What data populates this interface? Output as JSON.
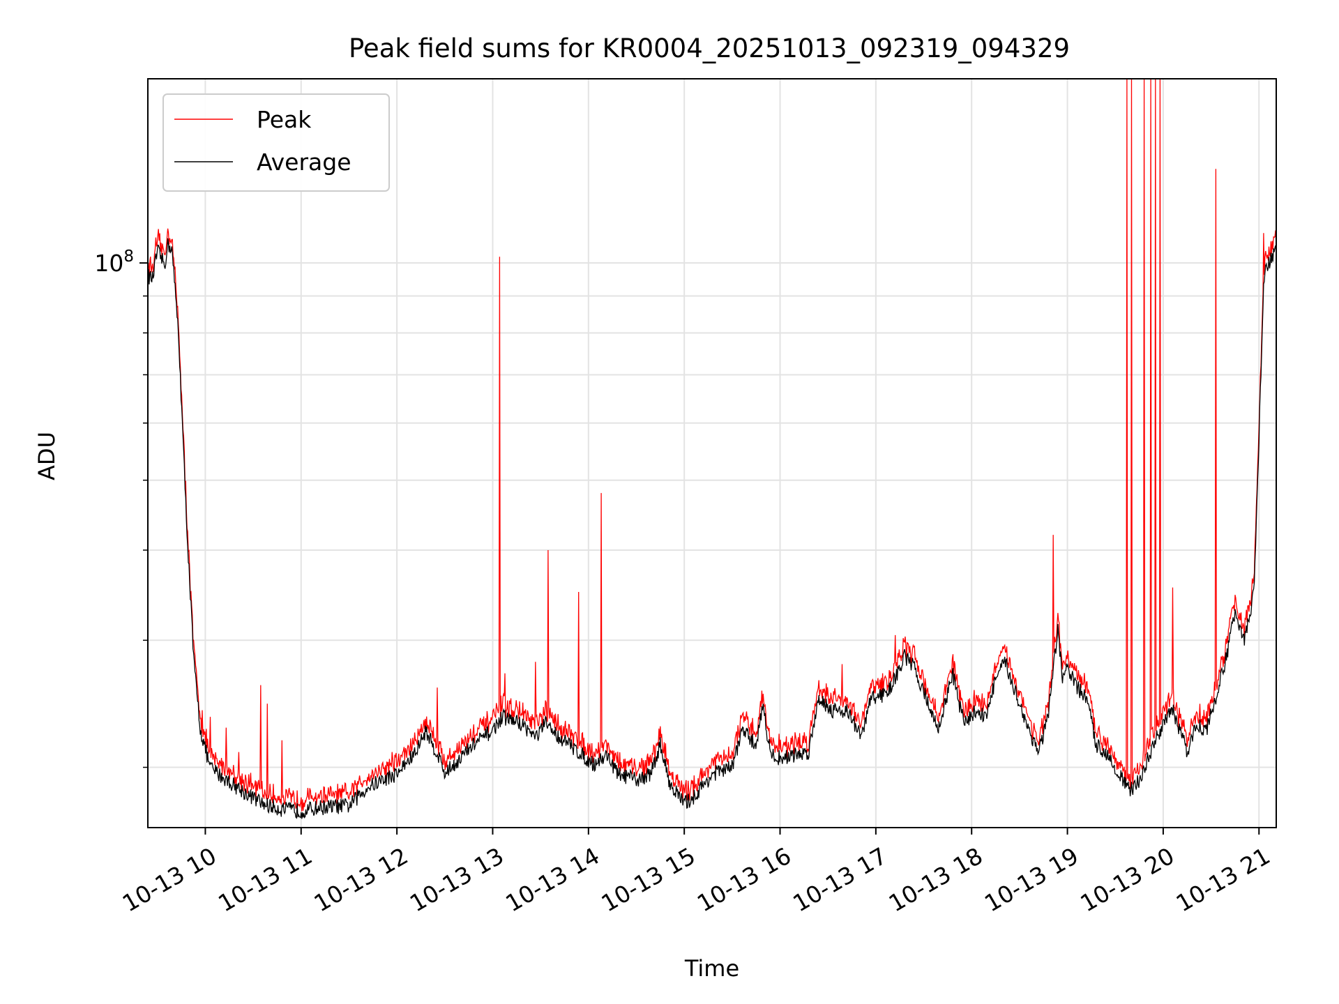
{
  "chart_data": {
    "type": "line",
    "title": "Peak field sums for KR0004_20251013_092319_094329",
    "xlabel": "Time",
    "ylabel": "ADU",
    "yscale": "log",
    "xlim": [
      9.4,
      21.18
    ],
    "ylim": [
      16500000,
      180000000
    ],
    "grid": true,
    "legend_position": "top-left",
    "y_major_tick_labels": [
      {
        "value": 100000000,
        "base": "10",
        "exp": "8"
      }
    ],
    "y_minor_ticks": [
      20000000,
      30000000,
      40000000,
      50000000,
      60000000,
      70000000,
      80000000,
      90000000,
      200000000
    ],
    "x_ticks": [
      {
        "value": 10,
        "label": "10-13 10"
      },
      {
        "value": 11,
        "label": "10-13 11"
      },
      {
        "value": 12,
        "label": "10-13 12"
      },
      {
        "value": 13,
        "label": "10-13 13"
      },
      {
        "value": 14,
        "label": "10-13 14"
      },
      {
        "value": 15,
        "label": "10-13 15"
      },
      {
        "value": 16,
        "label": "10-13 16"
      },
      {
        "value": 17,
        "label": "10-13 17"
      },
      {
        "value": 18,
        "label": "10-13 18"
      },
      {
        "value": 19,
        "label": "10-13 19"
      },
      {
        "value": 20,
        "label": "10-13 20"
      },
      {
        "value": 21,
        "label": "10-13 21"
      }
    ],
    "series": [
      {
        "name": "Peak",
        "color": "#ff0000"
      },
      {
        "name": "Average",
        "color": "#000000"
      }
    ],
    "average_keypoints": [
      [
        9.4,
        96000000
      ],
      [
        9.45,
        95000000
      ],
      [
        9.5,
        104000000
      ],
      [
        9.58,
        99000000
      ],
      [
        9.6,
        106000000
      ],
      [
        9.65,
        105000000
      ],
      [
        9.72,
        80000000
      ],
      [
        9.8,
        45000000
      ],
      [
        9.88,
        28000000
      ],
      [
        9.95,
        22500000
      ],
      [
        10.05,
        20000000
      ],
      [
        10.2,
        19300000
      ],
      [
        10.4,
        18500000
      ],
      [
        10.6,
        17800000
      ],
      [
        10.8,
        17500000
      ],
      [
        11.0,
        17400000
      ],
      [
        11.2,
        17600000
      ],
      [
        11.5,
        17700000
      ],
      [
        11.7,
        18800000
      ],
      [
        12.0,
        19600000
      ],
      [
        12.2,
        21000000
      ],
      [
        12.3,
        22500000
      ],
      [
        12.45,
        20500000
      ],
      [
        12.5,
        19600000
      ],
      [
        12.8,
        21500000
      ],
      [
        13.0,
        22500000
      ],
      [
        13.1,
        23500000
      ],
      [
        13.3,
        23000000
      ],
      [
        13.45,
        22000000
      ],
      [
        13.55,
        23000000
      ],
      [
        13.7,
        22000000
      ],
      [
        13.9,
        21000000
      ],
      [
        14.05,
        20200000
      ],
      [
        14.2,
        20800000
      ],
      [
        14.3,
        19600000
      ],
      [
        14.5,
        19200000
      ],
      [
        14.65,
        19600000
      ],
      [
        14.75,
        21500000
      ],
      [
        14.85,
        19000000
      ],
      [
        15.0,
        17800000
      ],
      [
        15.1,
        18200000
      ],
      [
        15.3,
        19600000
      ],
      [
        15.5,
        20000000
      ],
      [
        15.6,
        22500000
      ],
      [
        15.75,
        21500000
      ],
      [
        15.82,
        24500000
      ],
      [
        15.9,
        20800000
      ],
      [
        16.0,
        20600000
      ],
      [
        16.3,
        21000000
      ],
      [
        16.4,
        25000000
      ],
      [
        16.55,
        24000000
      ],
      [
        16.7,
        24000000
      ],
      [
        16.85,
        22000000
      ],
      [
        16.95,
        25000000
      ],
      [
        17.1,
        25200000
      ],
      [
        17.2,
        26500000
      ],
      [
        17.3,
        28500000
      ],
      [
        17.4,
        27500000
      ],
      [
        17.5,
        25500000
      ],
      [
        17.65,
        22500000
      ],
      [
        17.8,
        27000000
      ],
      [
        17.92,
        23000000
      ],
      [
        18.05,
        24000000
      ],
      [
        18.15,
        23500000
      ],
      [
        18.25,
        26500000
      ],
      [
        18.35,
        28000000
      ],
      [
        18.5,
        24500000
      ],
      [
        18.6,
        22500000
      ],
      [
        18.7,
        21000000
      ],
      [
        18.8,
        23500000
      ],
      [
        18.9,
        31000000
      ],
      [
        18.95,
        26500000
      ],
      [
        19.0,
        27500000
      ],
      [
        19.1,
        25800000
      ],
      [
        19.2,
        25000000
      ],
      [
        19.3,
        21500000
      ],
      [
        19.4,
        21000000
      ],
      [
        19.5,
        20000000
      ],
      [
        19.65,
        18500000
      ],
      [
        19.75,
        19200000
      ],
      [
        19.9,
        21500000
      ],
      [
        20.0,
        23000000
      ],
      [
        20.1,
        24000000
      ],
      [
        20.2,
        22000000
      ],
      [
        20.25,
        21000000
      ],
      [
        20.35,
        23000000
      ],
      [
        20.45,
        22500000
      ],
      [
        20.55,
        25000000
      ],
      [
        20.65,
        28000000
      ],
      [
        20.75,
        33000000
      ],
      [
        20.85,
        30000000
      ],
      [
        20.95,
        35000000
      ],
      [
        21.05,
        95000000
      ],
      [
        21.1,
        100000000
      ],
      [
        21.18,
        104000000
      ]
    ],
    "peak_spikes": [
      [
        9.85,
        35000000
      ],
      [
        9.97,
        24000000
      ],
      [
        10.05,
        23500000
      ],
      [
        10.22,
        22700000
      ],
      [
        10.35,
        21000000
      ],
      [
        10.58,
        26000000
      ],
      [
        10.65,
        24500000
      ],
      [
        10.8,
        21800000
      ],
      [
        11.95,
        21000000
      ],
      [
        12.3,
        22500000
      ],
      [
        12.42,
        25800000
      ],
      [
        13.07,
        102000000
      ],
      [
        13.13,
        27000000
      ],
      [
        13.45,
        28000000
      ],
      [
        13.58,
        40000000
      ],
      [
        13.9,
        35000000
      ],
      [
        14.13,
        48000000
      ],
      [
        15.82,
        24500000
      ],
      [
        16.65,
        27800000
      ],
      [
        17.2,
        30500000
      ],
      [
        18.85,
        42000000
      ],
      [
        19.62,
        180000000
      ],
      [
        19.67,
        180000000
      ],
      [
        19.8,
        180000000
      ],
      [
        19.87,
        180000000
      ],
      [
        19.92,
        180000000
      ],
      [
        19.97,
        180000000
      ],
      [
        20.1,
        35500000
      ],
      [
        20.55,
        135000000
      ],
      [
        21.05,
        110000000
      ]
    ]
  }
}
